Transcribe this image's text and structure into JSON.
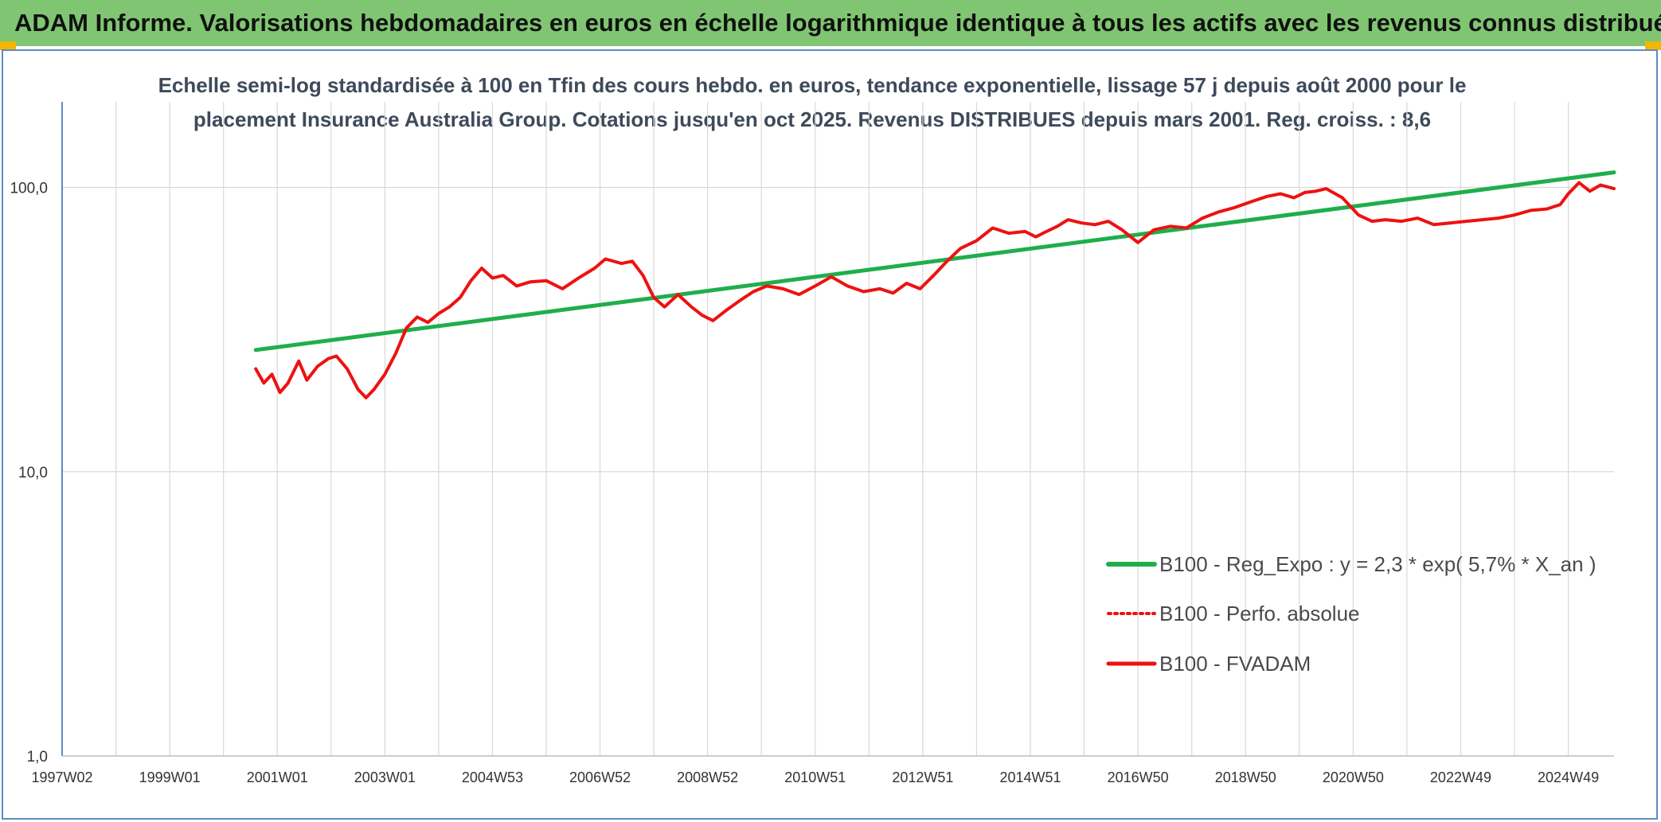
{
  "header": {
    "title": "ADAM Informe. Valorisations hebdomadaires en euros en échelle logarithmique identique à tous les actifs avec les revenus connus distribués"
  },
  "chart_data": {
    "type": "line",
    "title_line1": "Echelle semi-log standardisée à 100 en Tfin des cours hebdo. en euros, tendance exponentielle, lissage 57 j depuis août 2000 pour le",
    "title_line2": "placement Insurance Australia Group. Cotations jusqu'en oct 2025. Revenus DISTRIBUES depuis mars 2001. Reg. croiss. : 8,6",
    "y_scale": "log",
    "ylim": [
      1,
      200
    ],
    "y_ticks": [
      1,
      10,
      100
    ],
    "y_tick_labels": [
      "1,0",
      "10,0",
      "100,0"
    ],
    "xlim": [
      1997.0,
      2025.85
    ],
    "x_ticks": [
      1997.0,
      1999.0,
      2001.0,
      2003.0,
      2005.0,
      2007.0,
      2009.0,
      2011.0,
      2013.0,
      2015.0,
      2017.0,
      2019.0,
      2021.0,
      2023.0,
      2025.0
    ],
    "x_tick_labels": [
      "1997W02",
      "1999W01",
      "2001W01",
      "2003W01",
      "2004W53",
      "2006W52",
      "2008W52",
      "2010W51",
      "2012W51",
      "2014W51",
      "2016W50",
      "2018W50",
      "2020W50",
      "2022W49",
      "2024W49"
    ],
    "grid": "vertical and horizontal",
    "legend_position": "right",
    "colors": {
      "trend": "#1fae4b",
      "price": "#ee1111",
      "grid": "#d9d9d9",
      "axis": "#5b8cc4"
    },
    "series": [
      {
        "name": "B100 - Reg_Expo : y = 2,3 * exp( 5,7% *  X_an )",
        "style": "solid-green",
        "x": [
          2000.6,
          2025.85
        ],
        "values": [
          26.8,
          113.0
        ]
      },
      {
        "name": "B100 - Perfo. absolue",
        "style": "dotted-red",
        "x": [],
        "values": []
      },
      {
        "name": "B100 - FVADAM",
        "style": "solid-red",
        "x": [
          2000.6,
          2000.75,
          2000.9,
          2001.05,
          2001.2,
          2001.4,
          2001.55,
          2001.75,
          2001.95,
          2002.1,
          2002.3,
          2002.5,
          2002.65,
          2002.8,
          2003.0,
          2003.2,
          2003.4,
          2003.6,
          2003.8,
          2004.0,
          2004.2,
          2004.4,
          2004.6,
          2004.8,
          2005.0,
          2005.2,
          2005.45,
          2005.7,
          2006.0,
          2006.3,
          2006.6,
          2006.9,
          2007.1,
          2007.4,
          2007.6,
          2007.8,
          2008.0,
          2008.2,
          2008.45,
          2008.7,
          2008.9,
          2009.1,
          2009.35,
          2009.6,
          2009.85,
          2010.1,
          2010.4,
          2010.7,
          2011.0,
          2011.3,
          2011.6,
          2011.9,
          2012.2,
          2012.45,
          2012.7,
          2012.95,
          2013.2,
          2013.45,
          2013.7,
          2014.0,
          2014.3,
          2014.6,
          2014.9,
          2015.1,
          2015.3,
          2015.5,
          2015.7,
          2015.95,
          2016.2,
          2016.45,
          2016.7,
          2017.0,
          2017.3,
          2017.6,
          2017.9,
          2018.2,
          2018.5,
          2018.8,
          2019.1,
          2019.4,
          2019.65,
          2019.9,
          2020.1,
          2020.3,
          2020.5,
          2020.8,
          2021.1,
          2021.35,
          2021.6,
          2021.9,
          2022.2,
          2022.5,
          2022.8,
          2023.1,
          2023.4,
          2023.7,
          2024.0,
          2024.3,
          2024.6,
          2024.85,
          2025.0,
          2025.2,
          2025.4,
          2025.6,
          2025.85
        ],
        "values": [
          23.0,
          20.5,
          22.0,
          19.0,
          20.5,
          24.5,
          21.0,
          23.5,
          25.0,
          25.5,
          23.0,
          19.5,
          18.2,
          19.5,
          22.0,
          26.0,
          32.0,
          35.0,
          33.5,
          36.0,
          38.0,
          41.0,
          47.0,
          52.0,
          48.0,
          49.0,
          45.0,
          46.5,
          47.0,
          44.0,
          48.0,
          52.0,
          56.0,
          54.0,
          55.0,
          49.0,
          41.0,
          38.0,
          42.0,
          38.0,
          35.5,
          34.0,
          37.0,
          40.0,
          43.0,
          45.0,
          44.0,
          42.0,
          45.0,
          48.5,
          45.0,
          43.0,
          44.0,
          42.5,
          46.0,
          44.0,
          49.0,
          55.0,
          61.0,
          65.0,
          72.0,
          69.0,
          70.0,
          67.0,
          70.0,
          73.0,
          77.0,
          75.0,
          74.0,
          76.0,
          71.0,
          64.0,
          71.0,
          73.0,
          72.0,
          78.0,
          82.0,
          85.0,
          89.0,
          93.0,
          95.0,
          92.0,
          96.0,
          97.0,
          99.0,
          92.0,
          80.0,
          76.0,
          77.0,
          76.0,
          78.0,
          74.0,
          75.0,
          76.0,
          77.0,
          78.0,
          80.0,
          83.0,
          84.0,
          87.0,
          95.0,
          104.0,
          97.0,
          102.0,
          99.0
        ]
      }
    ]
  }
}
